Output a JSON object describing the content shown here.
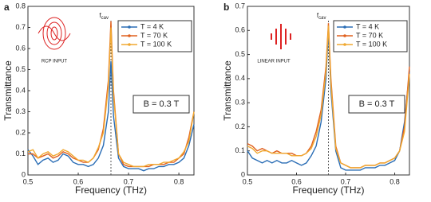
{
  "chart_data": [
    {
      "type": "line",
      "panel_label": "a",
      "x_label": "Frequency (THz)",
      "y_label": "Transmittance",
      "annotation_f": "f",
      "annotation_sub": "cav",
      "annotation_x": 0.665,
      "field_label": "B = 0.3 T",
      "input_label": "RCP INPUT",
      "xlim": [
        0.5,
        0.83
      ],
      "xticks": [
        0.5,
        0.6,
        0.7,
        0.8
      ],
      "ylim": [
        0,
        0.8
      ],
      "yticks": [
        0,
        0.1,
        0.2,
        0.3,
        0.4,
        0.5,
        0.6,
        0.7,
        0.8
      ],
      "legend": "upper right",
      "x": [
        0.5,
        0.51,
        0.52,
        0.53,
        0.54,
        0.55,
        0.56,
        0.57,
        0.58,
        0.59,
        0.6,
        0.61,
        0.62,
        0.63,
        0.64,
        0.65,
        0.66,
        0.665,
        0.67,
        0.68,
        0.69,
        0.7,
        0.71,
        0.72,
        0.73,
        0.74,
        0.75,
        0.76,
        0.77,
        0.78,
        0.79,
        0.8,
        0.81,
        0.82,
        0.83
      ],
      "series": [
        {
          "name": "T = 4 K",
          "color": "#2a6db5",
          "values": [
            0.12,
            0.09,
            0.05,
            0.07,
            0.08,
            0.06,
            0.07,
            0.1,
            0.09,
            0.06,
            0.05,
            0.05,
            0.04,
            0.05,
            0.08,
            0.14,
            0.3,
            0.54,
            0.28,
            0.08,
            0.04,
            0.03,
            0.03,
            0.03,
            0.02,
            0.03,
            0.03,
            0.04,
            0.04,
            0.05,
            0.05,
            0.06,
            0.08,
            0.14,
            0.24
          ]
        },
        {
          "name": "T = 70 K",
          "color": "#e0611f",
          "values": [
            0.1,
            0.1,
            0.08,
            0.09,
            0.1,
            0.08,
            0.09,
            0.11,
            0.1,
            0.08,
            0.07,
            0.06,
            0.06,
            0.08,
            0.12,
            0.22,
            0.45,
            0.73,
            0.4,
            0.1,
            0.05,
            0.04,
            0.04,
            0.04,
            0.04,
            0.04,
            0.05,
            0.05,
            0.05,
            0.06,
            0.06,
            0.08,
            0.1,
            0.18,
            0.3
          ]
        },
        {
          "name": "T = 100 K",
          "color": "#f0a830",
          "values": [
            0.11,
            0.12,
            0.08,
            0.1,
            0.11,
            0.09,
            0.1,
            0.12,
            0.11,
            0.09,
            0.07,
            0.07,
            0.06,
            0.08,
            0.13,
            0.2,
            0.42,
            0.7,
            0.38,
            0.1,
            0.06,
            0.05,
            0.04,
            0.04,
            0.04,
            0.05,
            0.05,
            0.05,
            0.06,
            0.06,
            0.07,
            0.08,
            0.11,
            0.16,
            0.3
          ]
        }
      ]
    },
    {
      "type": "line",
      "panel_label": "b",
      "x_label": "Frequency (THz)",
      "y_label": "Transmittance",
      "annotation_f": "f",
      "annotation_sub": "cav",
      "annotation_x": 0.665,
      "field_label": "B = 0.3 T",
      "input_label": "LINEAR INPUT",
      "xlim": [
        0.5,
        0.83
      ],
      "xticks": [
        0.5,
        0.6,
        0.7,
        0.8
      ],
      "ylim": [
        0,
        0.7
      ],
      "yticks": [
        0,
        0.1,
        0.2,
        0.3,
        0.4,
        0.5,
        0.6,
        0.7
      ],
      "legend": "upper right",
      "x": [
        0.5,
        0.51,
        0.52,
        0.53,
        0.54,
        0.55,
        0.56,
        0.57,
        0.58,
        0.59,
        0.6,
        0.61,
        0.62,
        0.63,
        0.64,
        0.65,
        0.66,
        0.665,
        0.67,
        0.68,
        0.69,
        0.7,
        0.71,
        0.72,
        0.73,
        0.74,
        0.75,
        0.76,
        0.77,
        0.78,
        0.79,
        0.8,
        0.81,
        0.82,
        0.83
      ],
      "series": [
        {
          "name": "T = 4 K",
          "color": "#2a6db5",
          "values": [
            0.1,
            0.07,
            0.06,
            0.05,
            0.06,
            0.05,
            0.06,
            0.05,
            0.05,
            0.06,
            0.05,
            0.04,
            0.05,
            0.08,
            0.12,
            0.22,
            0.4,
            0.6,
            0.35,
            0.1,
            0.03,
            0.02,
            0.02,
            0.02,
            0.02,
            0.03,
            0.03,
            0.03,
            0.04,
            0.04,
            0.05,
            0.06,
            0.1,
            0.22,
            0.43
          ]
        },
        {
          "name": "T = 70 K",
          "color": "#e0611f",
          "values": [
            0.13,
            0.12,
            0.1,
            0.11,
            0.1,
            0.09,
            0.1,
            0.09,
            0.09,
            0.09,
            0.08,
            0.08,
            0.09,
            0.12,
            0.18,
            0.27,
            0.45,
            0.63,
            0.4,
            0.12,
            0.05,
            0.04,
            0.03,
            0.03,
            0.03,
            0.04,
            0.04,
            0.04,
            0.05,
            0.05,
            0.06,
            0.07,
            0.1,
            0.2,
            0.45
          ]
        },
        {
          "name": "T = 100 K",
          "color": "#f0a830",
          "values": [
            0.12,
            0.11,
            0.09,
            0.1,
            0.1,
            0.09,
            0.09,
            0.09,
            0.09,
            0.08,
            0.08,
            0.08,
            0.09,
            0.11,
            0.16,
            0.25,
            0.43,
            0.62,
            0.38,
            0.11,
            0.05,
            0.04,
            0.03,
            0.03,
            0.03,
            0.04,
            0.04,
            0.04,
            0.05,
            0.05,
            0.06,
            0.07,
            0.1,
            0.18,
            0.42
          ]
        }
      ]
    }
  ]
}
